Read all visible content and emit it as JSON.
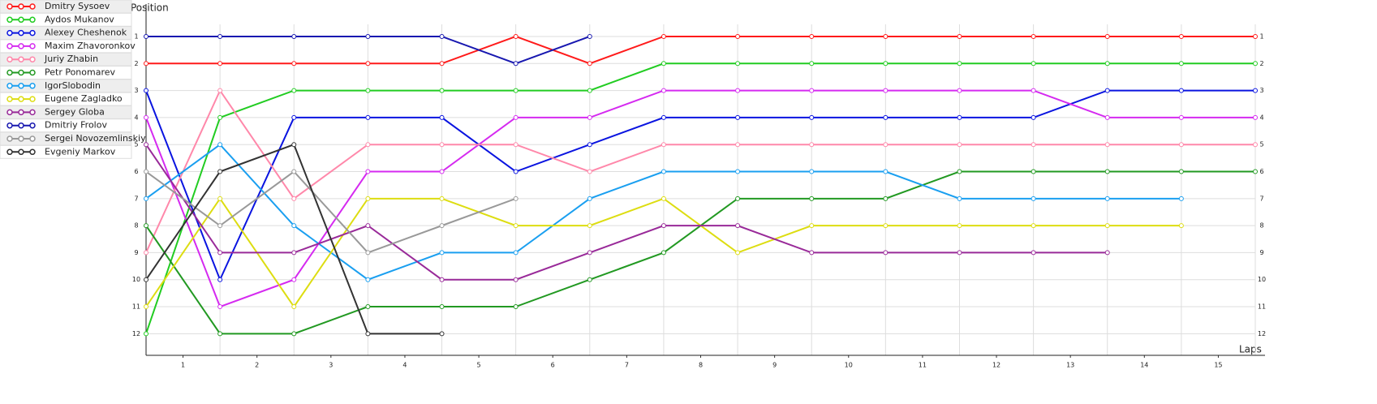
{
  "chart_data": {
    "type": "line",
    "y_label": "Position",
    "x_label": "Laps",
    "x": [
      0,
      1,
      2,
      3,
      4,
      5,
      6,
      7,
      8,
      9,
      10,
      11,
      12,
      13,
      14,
      15
    ],
    "xlim": [
      0,
      15
    ],
    "xticks": [
      {
        "value": 0.5,
        "label": "1"
      },
      {
        "value": 1.5,
        "label": "2"
      },
      {
        "value": 2.5,
        "label": "3"
      },
      {
        "value": 3.5,
        "label": "4"
      },
      {
        "value": 4.5,
        "label": "5"
      },
      {
        "value": 5.5,
        "label": "6"
      },
      {
        "value": 6.5,
        "label": "7"
      },
      {
        "value": 7.5,
        "label": "8"
      },
      {
        "value": 8.5,
        "label": "9"
      },
      {
        "value": 9.5,
        "label": "10"
      },
      {
        "value": 10.5,
        "label": "11"
      },
      {
        "value": 11.5,
        "label": "12"
      },
      {
        "value": 12.5,
        "label": "13"
      },
      {
        "value": 13.5,
        "label": "14"
      },
      {
        "value": 14.5,
        "label": "15"
      }
    ],
    "ylim": [
      12.8,
      0.1
    ],
    "yticks": [
      1,
      2,
      3,
      4,
      5,
      6,
      7,
      8,
      9,
      10,
      11,
      12
    ],
    "grid": true,
    "series": [
      {
        "name": "Dmitry Sysoev",
        "color": "#ff1a1a",
        "values": [
          2,
          2,
          2,
          2,
          2,
          1,
          2,
          1,
          1,
          1,
          1,
          1,
          1,
          1,
          1,
          1
        ]
      },
      {
        "name": "Aydos Mukanov",
        "color": "#22cc22",
        "values": [
          12,
          4,
          3,
          3,
          3,
          3,
          3,
          2,
          2,
          2,
          2,
          2,
          2,
          2,
          2,
          2
        ]
      },
      {
        "name": "Alexey Cheshenok",
        "color": "#0a14e0",
        "values": [
          3,
          10,
          4,
          4,
          4,
          6,
          5,
          4,
          4,
          4,
          4,
          4,
          4,
          3,
          3,
          3
        ]
      },
      {
        "name": "Maxim Zhavoronkov",
        "color": "#d52af0",
        "values": [
          4,
          11,
          10,
          6,
          6,
          4,
          4,
          3,
          3,
          3,
          3,
          3,
          3,
          4,
          4,
          4
        ]
      },
      {
        "name": "Juriy Zhabin",
        "color": "#ff88aa",
        "values": [
          9,
          3,
          7,
          5,
          5,
          5,
          6,
          5,
          5,
          5,
          5,
          5,
          5,
          5,
          5,
          5
        ]
      },
      {
        "name": "Petr Ponomarev",
        "color": "#229922",
        "values": [
          8,
          12,
          12,
          11,
          11,
          11,
          10,
          9,
          7,
          7,
          7,
          6,
          6,
          6,
          6,
          6
        ]
      },
      {
        "name": "IgorSlobodin",
        "color": "#1a9ff0",
        "values": [
          7,
          5,
          8,
          10,
          9,
          9,
          7,
          6,
          6,
          6,
          6,
          7,
          7,
          7,
          7,
          null
        ]
      },
      {
        "name": "Eugene Zagladko",
        "color": "#dddd11",
        "values": [
          11,
          7,
          11,
          7,
          7,
          8,
          8,
          7,
          9,
          8,
          8,
          8,
          8,
          8,
          8,
          null
        ]
      },
      {
        "name": "Sergey Globa",
        "color": "#992a99",
        "values": [
          5,
          9,
          9,
          8,
          10,
          10,
          9,
          8,
          8,
          9,
          9,
          9,
          9,
          9,
          null,
          null
        ]
      },
      {
        "name": "Dmitriy Frolov",
        "color": "#1818b0",
        "values": [
          1,
          1,
          1,
          1,
          1,
          2,
          1,
          null,
          null,
          null,
          null,
          null,
          null,
          null,
          null,
          null
        ]
      },
      {
        "name": "Sergei Novozemlinskiy",
        "color": "#999999",
        "values": [
          6,
          8,
          6,
          9,
          8,
          7,
          null,
          null,
          null,
          null,
          null,
          null,
          null,
          null,
          null,
          null
        ]
      },
      {
        "name": "Evgeniy Markov",
        "color": "#333333",
        "values": [
          10,
          6,
          5,
          12,
          12,
          null,
          null,
          null,
          null,
          null,
          null,
          null,
          null,
          null,
          null,
          null
        ]
      }
    ]
  }
}
